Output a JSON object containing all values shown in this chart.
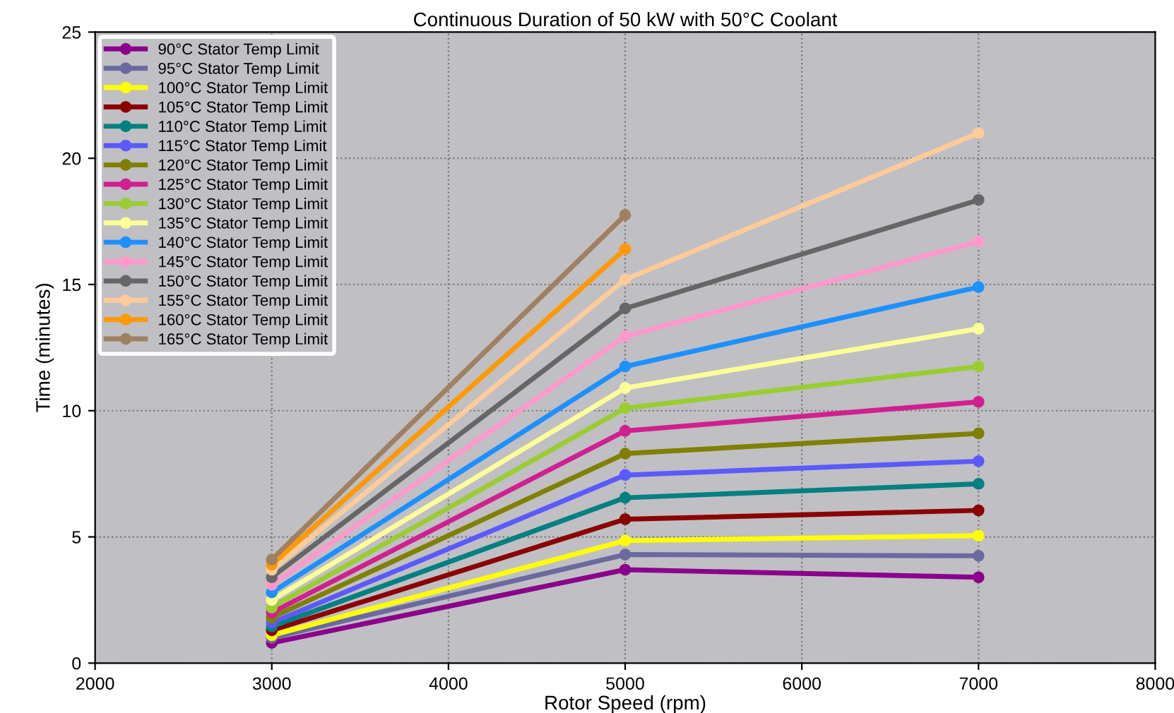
{
  "chart_data": {
    "type": "line",
    "title": "Continuous Duration of 50 kW with 50°C Coolant",
    "xlabel": "Rotor Speed (rpm)",
    "ylabel": "Time (minutes)",
    "x": [
      3000,
      5000,
      7000
    ],
    "xlim": [
      2000,
      8000
    ],
    "xticks": [
      2000,
      3000,
      4000,
      5000,
      6000,
      7000,
      8000
    ],
    "ylim": [
      0,
      25
    ],
    "yticks": [
      0,
      5,
      10,
      15,
      20,
      25
    ],
    "grid": true,
    "legend": "top left",
    "marker": "circle",
    "line_style": "solid",
    "series": [
      {
        "name": "90°C Stator Temp Limit",
        "color": "#8b008b",
        "values": [
          0.8,
          3.7,
          3.4
        ]
      },
      {
        "name": "95°C Stator Temp Limit",
        "color": "#6a6aa0",
        "values": [
          1.0,
          4.3,
          4.25
        ]
      },
      {
        "name": "100°C Stator Temp Limit",
        "color": "#ffff00",
        "values": [
          1.1,
          4.85,
          5.05
        ]
      },
      {
        "name": "105°C Stator Temp Limit",
        "color": "#8b0000",
        "values": [
          1.3,
          5.7,
          6.05
        ]
      },
      {
        "name": "110°C Stator Temp Limit",
        "color": "#008080",
        "values": [
          1.45,
          6.55,
          7.1
        ]
      },
      {
        "name": "115°C Stator Temp Limit",
        "color": "#5a5aff",
        "values": [
          1.6,
          7.45,
          8.0
        ]
      },
      {
        "name": "120°C Stator Temp Limit",
        "color": "#808000",
        "values": [
          1.8,
          8.3,
          9.1
        ]
      },
      {
        "name": "125°C Stator Temp Limit",
        "color": "#d02090",
        "values": [
          2.0,
          9.2,
          10.35
        ]
      },
      {
        "name": "130°C Stator Temp Limit",
        "color": "#9acd32",
        "values": [
          2.2,
          10.1,
          11.75
        ]
      },
      {
        "name": "135°C Stator Temp Limit",
        "color": "#ffff99",
        "values": [
          2.5,
          10.9,
          13.25
        ]
      },
      {
        "name": "140°C Stator Temp Limit",
        "color": "#1e90ff",
        "values": [
          2.8,
          11.75,
          14.9
        ]
      },
      {
        "name": "145°C Stator Temp Limit",
        "color": "#ff99cc",
        "values": [
          3.1,
          12.95,
          16.7
        ]
      },
      {
        "name": "150°C Stator Temp Limit",
        "color": "#666666",
        "values": [
          3.4,
          14.05,
          18.35
        ]
      },
      {
        "name": "155°C Stator Temp Limit",
        "color": "#ffcc99",
        "values": [
          3.7,
          15.2,
          21.0
        ]
      },
      {
        "name": "160°C Stator Temp Limit",
        "color": "#ff9900",
        "values": [
          3.9,
          16.4,
          null
        ]
      },
      {
        "name": "165°C Stator Temp Limit",
        "color": "#a08060",
        "values": [
          4.1,
          17.75,
          null
        ]
      }
    ]
  }
}
